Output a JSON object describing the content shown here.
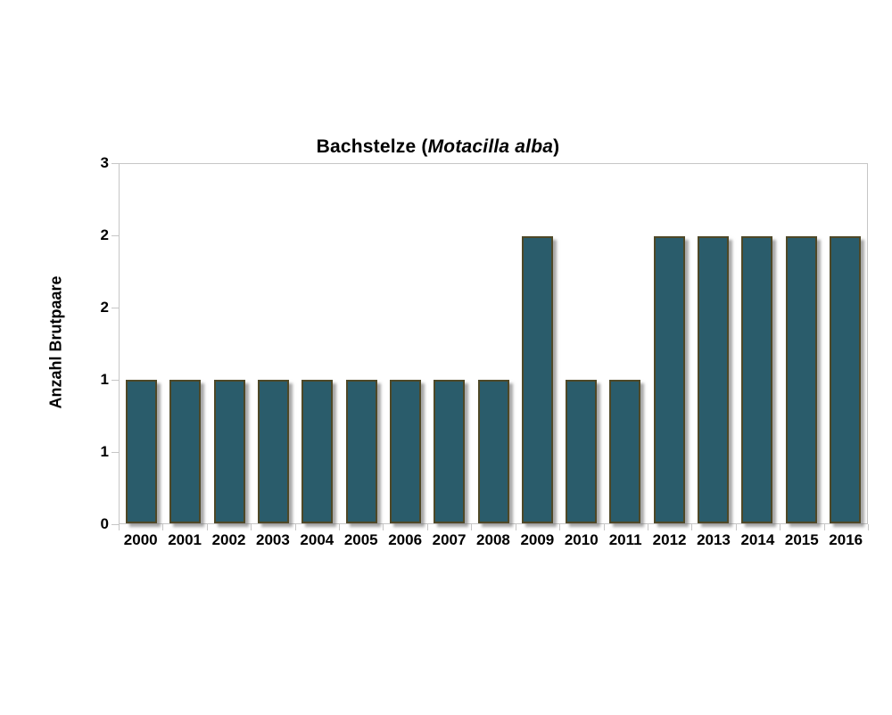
{
  "title": {
    "text_before_species": "Bachstelze (",
    "species_italic": "Motacilla alba",
    "text_after_species": ")"
  },
  "y_axis": {
    "title": "Anzahl Brutpaare",
    "min": 0,
    "max": 2.5,
    "tick_interval": 0.5,
    "tick_values_top_to_bottom": [
      2.5,
      2,
      1.5,
      1,
      0.5,
      0
    ],
    "tick_display_labels_top_to_bottom": [
      "3",
      "2",
      "2",
      "1",
      "1",
      "0"
    ]
  },
  "chart_data": {
    "type": "bar",
    "title": "Bachstelze (Motacilla alba)",
    "categories": [
      "2000",
      "2001",
      "2002",
      "2003",
      "2004",
      "2005",
      "2006",
      "2007",
      "2008",
      "2009",
      "2010",
      "2011",
      "2012",
      "2013",
      "2014",
      "2015",
      "2016"
    ],
    "values": [
      1,
      1,
      1,
      1,
      1,
      1,
      1,
      1,
      1,
      2,
      1,
      1,
      2,
      2,
      2,
      2,
      2
    ],
    "xlabel": "",
    "ylabel": "Anzahl Brutpaare",
    "ylim": [
      0,
      2.5
    ],
    "y_tick_interval": 0.5,
    "y_tick_display_labels_top_to_bottom": [
      "3",
      "2",
      "2",
      "1",
      "1",
      "0"
    ],
    "grid": false,
    "legend_position": "none"
  },
  "colors": {
    "bar_fill": "#2A5C6B",
    "bar_border": "#4E4827",
    "bar_shadow": "#A0A0A0",
    "plot_border": "#C6C6C6",
    "text": "#000000",
    "background": "#FFFFFF"
  }
}
